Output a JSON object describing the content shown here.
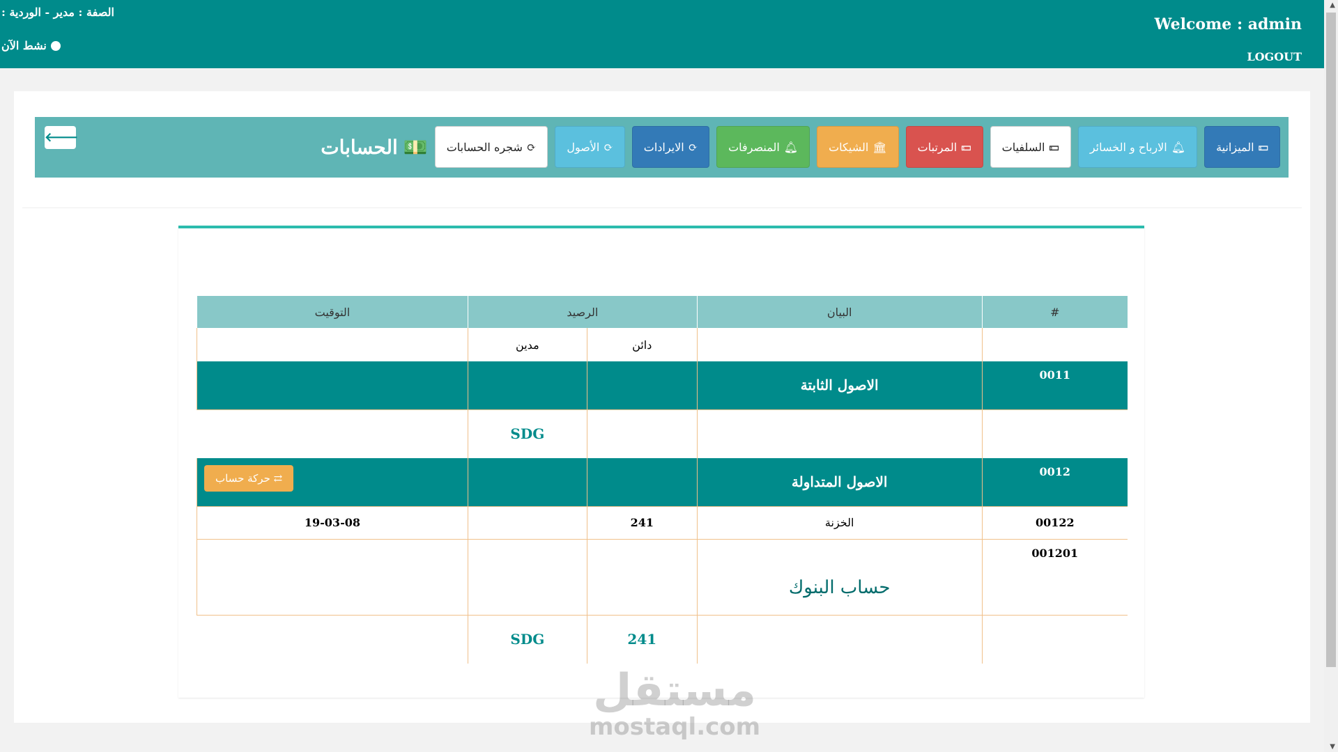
{
  "header": {
    "role": "الصفة : مدير - الوردية :",
    "status": "نشط الآن",
    "welcome": "Welcome : admin",
    "logout": "LOGOUT"
  },
  "toolbar": {
    "title": "الحسابات",
    "back_icon": "arrow-left-icon",
    "buttons": [
      {
        "label": "شجره الحسابات",
        "icon": "refresh-icon",
        "color": "#ffffff"
      },
      {
        "label": "الأصول",
        "icon": "refresh-icon",
        "color": "#5bc0de"
      },
      {
        "label": "الايرادات",
        "icon": "refresh-icon",
        "color": "#337ab7"
      },
      {
        "label": "المنصرفات",
        "icon": "bell-icon",
        "color": "#5cb85c"
      },
      {
        "label": "الشيكات",
        "icon": "bank-icon",
        "color": "#f0ad4e"
      },
      {
        "label": "المرتبات",
        "icon": "money-icon",
        "color": "#d9534f"
      },
      {
        "label": "السلفيات",
        "icon": "money-icon",
        "color": "#ffffff"
      },
      {
        "label": "الارباح و الخسائر",
        "icon": "bell-icon",
        "color": "#5bc0de"
      },
      {
        "label": "الميزانية",
        "icon": "money-icon",
        "color": "#337ab7"
      }
    ]
  },
  "table": {
    "headers": [
      "#",
      "البيان",
      "الرصيد",
      "التوقيت"
    ],
    "sub": [
      "دائن",
      "مدين"
    ],
    "group1": {
      "code": "0011",
      "name": "الاصول الثابتة",
      "currency": "SDG"
    },
    "group2": {
      "code": "0012",
      "name": "الاصول المتداولة",
      "action": "حركة حساب"
    },
    "row1": {
      "code": "00122",
      "name": "الخزنة",
      "credit": "241",
      "time": "19-03-08"
    },
    "row2": {
      "code": "001201",
      "name": "حساب البنوك"
    },
    "total": {
      "credit": "241",
      "currency": "SDG"
    }
  },
  "watermark": {
    "ar": "مستقل",
    "en": "mostaql.com"
  }
}
